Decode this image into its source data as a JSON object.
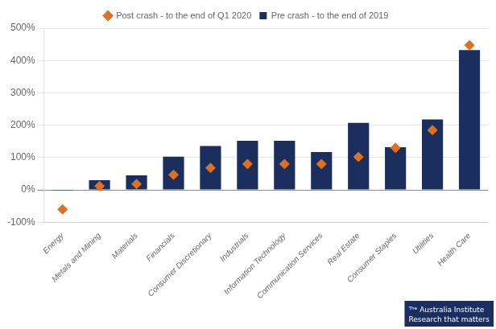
{
  "chart_data": {
    "type": "bar",
    "categories": [
      "Energy",
      "Metals and Mining",
      "Materials",
      "Financials",
      "Consumer Discretionary",
      "Industrials",
      "Information Technology",
      "Communication Services",
      "Real Estate",
      "Consumer Staples",
      "Utilities",
      "Health Care"
    ],
    "series": [
      {
        "name": "Pre crash - to the end of 2019",
        "color": "#1a2f5e",
        "values": [
          -2,
          30,
          45,
          103,
          136,
          152,
          152,
          117,
          207,
          132,
          218,
          432
        ]
      },
      {
        "name": "Post crash - to the end of Q1 2020",
        "color": "#e07020",
        "type": "scatter",
        "marker": "diamond",
        "values": [
          -60,
          12,
          18,
          47,
          68,
          80,
          80,
          80,
          102,
          130,
          185,
          447
        ]
      }
    ],
    "ylim": [
      -100,
      500
    ],
    "yticks": [
      {
        "value": -100,
        "label": "-100%"
      },
      {
        "value": 0,
        "label": "0%"
      },
      {
        "value": 100,
        "label": "100%"
      },
      {
        "value": 200,
        "label": "200%"
      },
      {
        "value": 300,
        "label": "300%"
      },
      {
        "value": 400,
        "label": "400%"
      },
      {
        "value": 500,
        "label": "500%"
      }
    ],
    "grid": "y",
    "legend": "top",
    "annotations": [
      {
        "text": "ᵀʰᵉ Australia Institute\nResearch that matters",
        "color": "#1a2f5e"
      }
    ]
  }
}
